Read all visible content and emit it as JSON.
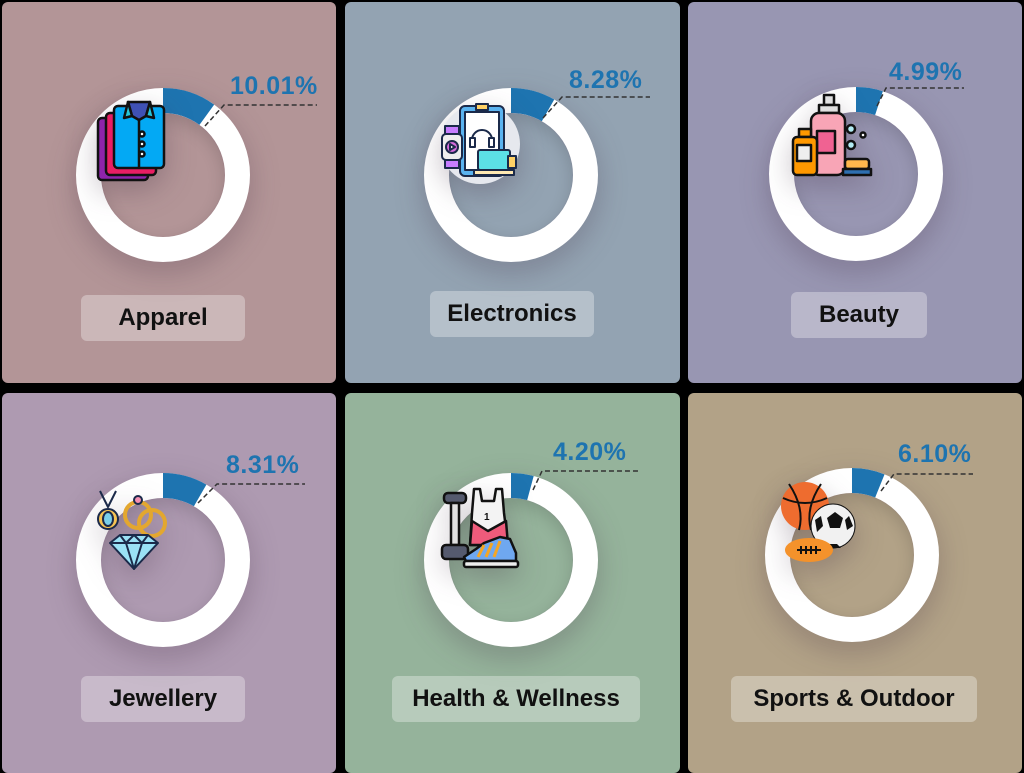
{
  "chart_data": {
    "type": "pie",
    "subtype": "donut-grid",
    "title": "",
    "categories": [
      "Apparel",
      "Electronics",
      "Beauty",
      "Jewellery",
      "Health & Wellness",
      "Sports & Outdoor"
    ],
    "values": [
      10.01,
      8.28,
      4.99,
      8.31,
      4.2,
      6.1
    ],
    "unit": "%",
    "highlight_color": "#1e74b0",
    "remainder_color": "#ffffff"
  },
  "panels": [
    {
      "label": "Apparel",
      "percent": "10.01%",
      "value": 10.01,
      "icon": "shirt-stack-icon",
      "bg": "#b39597"
    },
    {
      "label": "Electronics",
      "percent": "8.28%",
      "value": 8.28,
      "icon": "electronics-devices-icon",
      "bg": "#93a3b2"
    },
    {
      "label": "Beauty",
      "percent": "4.99%",
      "value": 4.99,
      "icon": "cosmetics-bottles-icon",
      "bg": "#9896b2"
    },
    {
      "label": "Jewellery",
      "percent": "8.31%",
      "value": 8.31,
      "icon": "jewellery-diamond-ring-icon",
      "bg": "#ae9ab1"
    },
    {
      "label": "Health & Wellness",
      "percent": "4.20%",
      "value": 4.2,
      "icon": "fitness-dumbbell-shoe-icon",
      "bg": "#95b39b"
    },
    {
      "label": "Sports & Outdoor",
      "percent": "6.10%",
      "value": 6.1,
      "icon": "sports-balls-icon",
      "bg": "#b2a287"
    }
  ]
}
